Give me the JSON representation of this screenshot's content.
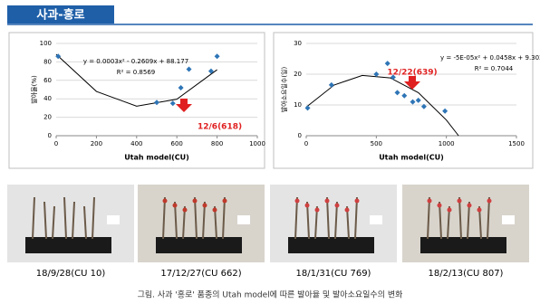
{
  "header": {
    "title": "사과-홍로"
  },
  "chart_data": [
    {
      "type": "scatter",
      "y_label": "발아율(%)",
      "x_label": "Utah model(CU)",
      "equation": "y = 0.0003x² - 0.2609x + 88.177",
      "r_squared": "R² = 0.8569",
      "annotation": "12/6(618)",
      "x": [
        10,
        500,
        580,
        620,
        660,
        770,
        800
      ],
      "values": [
        86,
        36,
        35,
        52,
        72,
        70,
        86
      ],
      "color": "#2e75b6",
      "trendline": {
        "x": [
          0,
          200,
          400,
          600,
          800
        ],
        "values": [
          88.2,
          48.0,
          32.0,
          39.6,
          71.5
        ],
        "color": "#000000"
      },
      "xlim": [
        0,
        1000
      ],
      "xticks": [
        0,
        200,
        400,
        600,
        800,
        1000
      ],
      "ylim": [
        0,
        100
      ],
      "yticks": [
        0,
        20,
        40,
        60,
        80,
        100
      ]
    },
    {
      "type": "scatter",
      "y_label": "발아소요일수(일)",
      "x_label": "Utah model(CU)",
      "equation": "y = -5E-05x² + 0.0458x + 9.3024",
      "r_squared": "R² = 0.7044",
      "annotation": "12/22(639)",
      "x": [
        10,
        180,
        500,
        580,
        620,
        650,
        700,
        760,
        800,
        840,
        990
      ],
      "values": [
        9,
        16.5,
        20,
        23.5,
        19,
        14,
        13,
        11,
        11.5,
        9.5,
        8
      ],
      "color": "#2e75b6",
      "trendline": {
        "x": [
          0,
          200,
          400,
          600,
          800,
          1000,
          1087
        ],
        "values": [
          9.3,
          16.5,
          19.6,
          18.8,
          14.0,
          5.1,
          0
        ],
        "color": "#000000"
      },
      "xlim": [
        0,
        1500
      ],
      "xticks": [
        0,
        500,
        1000,
        1500
      ],
      "ylim": [
        0,
        30
      ],
      "yticks": [
        0,
        10,
        20,
        30
      ]
    }
  ],
  "photos": [
    {
      "caption": "18/9/28(CU 10)"
    },
    {
      "caption": "17/12/27(CU 662)"
    },
    {
      "caption": "18/1/31(CU 769)"
    },
    {
      "caption": "18/2/13(CU 807)"
    }
  ],
  "footer": {
    "text": "그림. 사과 '홍로' 품종의 Utah model에 따른 발아율 및 발아소요일수의 변화"
  }
}
